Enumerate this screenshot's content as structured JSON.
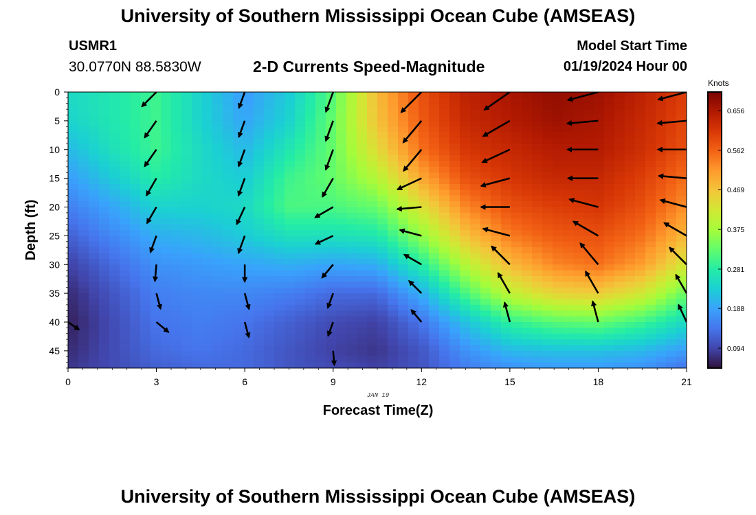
{
  "header": {
    "title": "University of Southern Mississippi Ocean Cube (AMSEAS)",
    "station_id": "USMR1",
    "station_coords": "30.0770N  88.5830W",
    "subtitle": "2-D Currents Speed-Magnitude",
    "start_label": "Model Start Time",
    "start_value": "01/19/2024 Hour 00"
  },
  "footer": {
    "title": "University of Southern Mississippi Ocean Cube (AMSEAS)"
  },
  "chart_data": {
    "type": "heatmap",
    "title": "2-D Currents Speed-Magnitude",
    "xlabel": "Forecast Time(Z)",
    "ylabel": "Depth (ft)",
    "date_label": "JAN 19",
    "x_ticks": [
      0,
      3,
      6,
      9,
      12,
      15,
      18,
      21
    ],
    "y_ticks": [
      0,
      5,
      10,
      15,
      20,
      25,
      30,
      35,
      40,
      45
    ],
    "xlim": [
      0,
      21
    ],
    "ylim": [
      0,
      48
    ],
    "colorbar": {
      "units": "Knots",
      "ticks": [
        0.094,
        0.188,
        0.281,
        0.375,
        0.469,
        0.562,
        0.656
      ],
      "tick_labels": [
        "0.094",
        "0.188",
        "0.281",
        "0.375",
        "0.469",
        "0.562",
        "0.656"
      ],
      "range": [
        0.047,
        0.7
      ],
      "colors": [
        "#30123b",
        "#4145ab",
        "#4675ed",
        "#39a2fc",
        "#1bcfd4",
        "#24eca6",
        "#61fc6c",
        "#a4fc3b",
        "#d1e834",
        "#f3c63a",
        "#fe9b2d",
        "#f36315",
        "#d93806",
        "#b11901",
        "#7a0402"
      ]
    },
    "speed_grid": {
      "times": [
        0,
        1.5,
        3,
        4.5,
        6,
        7.5,
        9,
        10.5,
        12,
        13.5,
        15,
        16.5,
        18,
        19.5,
        21
      ],
      "depths": [
        0,
        5,
        10,
        15,
        20,
        25,
        30,
        35,
        40,
        45,
        48
      ],
      "values": [
        [
          0.25,
          0.27,
          0.3,
          0.24,
          0.18,
          0.23,
          0.32,
          0.48,
          0.58,
          0.64,
          0.66,
          0.68,
          0.67,
          0.64,
          0.6
        ],
        [
          0.24,
          0.27,
          0.3,
          0.24,
          0.19,
          0.24,
          0.33,
          0.47,
          0.57,
          0.63,
          0.65,
          0.67,
          0.66,
          0.63,
          0.59
        ],
        [
          0.21,
          0.26,
          0.3,
          0.25,
          0.21,
          0.27,
          0.33,
          0.44,
          0.55,
          0.61,
          0.63,
          0.65,
          0.65,
          0.62,
          0.58
        ],
        [
          0.18,
          0.23,
          0.28,
          0.25,
          0.23,
          0.3,
          0.33,
          0.39,
          0.5,
          0.58,
          0.61,
          0.63,
          0.63,
          0.6,
          0.55
        ],
        [
          0.15,
          0.19,
          0.24,
          0.24,
          0.25,
          0.31,
          0.31,
          0.33,
          0.43,
          0.53,
          0.58,
          0.6,
          0.61,
          0.58,
          0.52
        ],
        [
          0.12,
          0.16,
          0.2,
          0.21,
          0.23,
          0.26,
          0.26,
          0.27,
          0.36,
          0.47,
          0.54,
          0.57,
          0.58,
          0.55,
          0.48
        ],
        [
          0.09,
          0.13,
          0.17,
          0.18,
          0.19,
          0.2,
          0.19,
          0.2,
          0.28,
          0.39,
          0.48,
          0.53,
          0.55,
          0.51,
          0.42
        ],
        [
          0.07,
          0.11,
          0.15,
          0.16,
          0.16,
          0.15,
          0.13,
          0.13,
          0.2,
          0.31,
          0.4,
          0.45,
          0.46,
          0.42,
          0.33
        ],
        [
          0.06,
          0.1,
          0.14,
          0.15,
          0.14,
          0.12,
          0.1,
          0.09,
          0.14,
          0.22,
          0.29,
          0.32,
          0.33,
          0.3,
          0.25
        ],
        [
          0.07,
          0.1,
          0.13,
          0.14,
          0.13,
          0.11,
          0.09,
          0.08,
          0.11,
          0.17,
          0.21,
          0.22,
          0.22,
          0.21,
          0.18
        ],
        [
          0.08,
          0.1,
          0.12,
          0.13,
          0.13,
          0.11,
          0.1,
          0.09,
          0.11,
          0.15,
          0.17,
          0.18,
          0.18,
          0.17,
          0.14
        ]
      ]
    },
    "vectors": {
      "times": [
        0,
        3,
        6,
        9,
        12,
        15,
        18,
        21
      ],
      "depths": [
        0,
        5,
        10,
        15,
        20,
        25,
        30,
        35,
        40,
        45
      ],
      "direction_deg": [
        [
          null,
          225,
          200,
          200,
          225,
          235,
          255,
          255
        ],
        [
          null,
          215,
          200,
          200,
          220,
          240,
          265,
          265
        ],
        [
          null,
          215,
          200,
          200,
          220,
          245,
          270,
          270
        ],
        [
          null,
          210,
          200,
          210,
          245,
          255,
          270,
          275
        ],
        [
          null,
          210,
          205,
          240,
          265,
          270,
          285,
          285
        ],
        [
          null,
          200,
          200,
          245,
          285,
          285,
          300,
          300
        ],
        [
          null,
          185,
          180,
          220,
          300,
          315,
          320,
          315
        ],
        [
          null,
          165,
          165,
          200,
          315,
          330,
          330,
          330
        ],
        [
          125,
          130,
          165,
          200,
          320,
          345,
          345,
          335
        ],
        [
          null,
          null,
          null,
          175,
          null,
          null,
          null,
          null
        ]
      ]
    }
  }
}
